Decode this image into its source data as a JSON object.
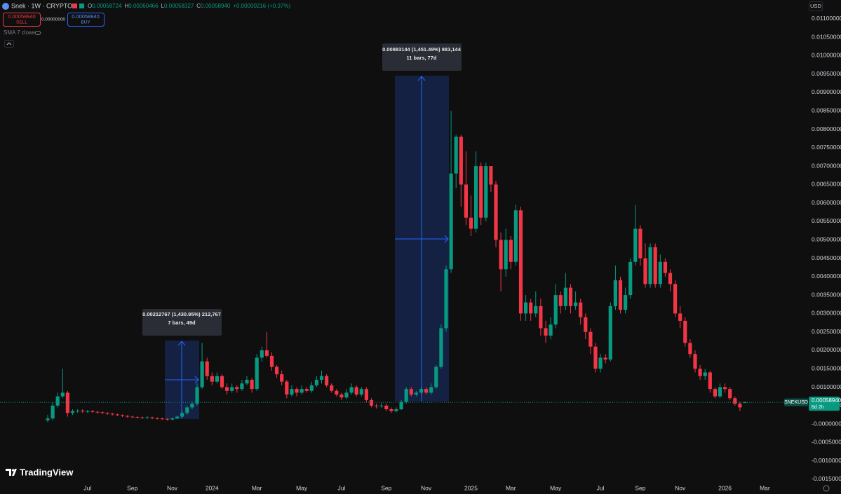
{
  "header": {
    "symbol": "Snek · 1W · CRYPTO",
    "legend": [
      {
        "key": "O",
        "value": "0.00058724"
      },
      {
        "key": "H",
        "value": "0.00060466"
      },
      {
        "key": "L",
        "value": "0.00058327"
      },
      {
        "key": "C",
        "value": "0.00058940"
      }
    ],
    "change": "+0.00000216 (+0.37%)"
  },
  "trade": {
    "sell_price": "0.00058940",
    "sell": "SELL",
    "spread": "0.00000000",
    "buy_price": "0.00058940",
    "buy": "BUY"
  },
  "indicator": "SMA 7 close",
  "currency": "USD",
  "brand": "TradingView",
  "measures": [
    {
      "text": "0.00212767 (1,430.95%) 212,767",
      "sub": "7 bars, 49d"
    },
    {
      "text": "0.00883144 (1,451.49%) 883,144",
      "sub": "11 bars, 77d"
    }
  ],
  "price_badge": {
    "symbol": "SNEKUSD",
    "price": "0.00058940",
    "countdown": "6d 2h"
  },
  "chart_data": {
    "type": "candlestick",
    "up_color": "#089981",
    "down_color": "#f23645",
    "grid": false,
    "ylim": [
      -0.00152,
      0.01151
    ],
    "yticks": [
      {
        "value": -0.0015,
        "label": "-0.00150000"
      },
      {
        "value": -0.001,
        "label": "-0.00100000"
      },
      {
        "value": -0.0005,
        "label": "-0.00050000"
      },
      {
        "value": 0,
        "label": "-0.00000000"
      },
      {
        "value": 0.0005,
        "label": "0.00050000"
      },
      {
        "value": 0.001,
        "label": "0.00100000"
      },
      {
        "value": 0.0015,
        "label": "0.00150000"
      },
      {
        "value": 0.002,
        "label": "0.00200000"
      },
      {
        "value": 0.0025,
        "label": "0.00250000"
      },
      {
        "value": 0.003,
        "label": "0.00300000"
      },
      {
        "value": 0.0035,
        "label": "0.00350000"
      },
      {
        "value": 0.004,
        "label": "0.00400000"
      },
      {
        "value": 0.0045,
        "label": "0.00450000"
      },
      {
        "value": 0.005,
        "label": "0.00500000"
      },
      {
        "value": 0.0055,
        "label": "0.00550000"
      },
      {
        "value": 0.006,
        "label": "0.00600000"
      },
      {
        "value": 0.0065,
        "label": "0.00650000"
      },
      {
        "value": 0.007,
        "label": "0.00700000"
      },
      {
        "value": 0.0075,
        "label": "0.00750000"
      },
      {
        "value": 0.008,
        "label": "0.00800000"
      },
      {
        "value": 0.0085,
        "label": "0.00850000"
      },
      {
        "value": 0.009,
        "label": "0.00900000"
      },
      {
        "value": 0.0095,
        "label": "0.00950000"
      },
      {
        "value": 0.01,
        "label": "0.01000000"
      },
      {
        "value": 0.0105,
        "label": "0.01050000"
      },
      {
        "value": 0.011,
        "label": "0.01100000"
      }
    ],
    "categories": [
      null,
      null,
      null,
      null,
      null,
      null,
      null,
      null,
      "Jul",
      null,
      null,
      null,
      null,
      null,
      null,
      null,
      null,
      "Sep",
      null,
      null,
      null,
      null,
      null,
      null,
      null,
      "Nov",
      null,
      null,
      null,
      null,
      null,
      null,
      null,
      "2024",
      null,
      null,
      null,
      null,
      null,
      null,
      null,
      null,
      "Mar",
      null,
      null,
      null,
      null,
      null,
      null,
      null,
      null,
      "May",
      null,
      null,
      null,
      null,
      null,
      null,
      null,
      "Jul",
      null,
      null,
      null,
      null,
      null,
      null,
      null,
      null,
      "Sep",
      null,
      null,
      null,
      null,
      null,
      null,
      null,
      "Nov",
      null,
      null,
      null,
      null,
      null,
      null,
      null,
      null,
      "2025",
      null,
      null,
      null,
      null,
      null,
      null,
      null,
      "Mar",
      null,
      null,
      null,
      null,
      null,
      null,
      null,
      null,
      "May",
      null,
      null,
      null,
      null,
      null,
      null,
      null,
      null,
      "Jul",
      null,
      null,
      null,
      null,
      null,
      null,
      null,
      "Sep",
      null,
      null,
      null,
      null,
      null,
      null,
      null,
      "Nov",
      null,
      null,
      null,
      null,
      null,
      null,
      null,
      null,
      "2026",
      null,
      null,
      null,
      null,
      null,
      null,
      null,
      "Mar",
      null
    ],
    "ohlc": [
      [
        0.0001,
        0.00025,
        5e-05,
        0.00015
      ],
      [
        0.00015,
        0.0006,
        0.0001,
        0.0005
      ],
      [
        0.0005,
        0.00085,
        0.00045,
        0.00075
      ],
      [
        0.00075,
        0.0015,
        0.0007,
        0.00085
      ],
      [
        0.00085,
        0.0009,
        0.0002,
        0.0003
      ],
      [
        0.0003,
        0.0004,
        0.00025,
        0.00035
      ],
      [
        0.00035,
        0.0004,
        0.0003,
        0.00036
      ],
      [
        0.00036,
        0.0004,
        0.0003,
        0.00034
      ],
      [
        0.00034,
        0.00038,
        0.0003,
        0.00035
      ],
      [
        0.00035,
        0.00038,
        0.0003,
        0.00033
      ],
      [
        0.00033,
        0.00036,
        0.00029,
        0.00032
      ],
      [
        0.00032,
        0.00034,
        0.00027,
        0.0003
      ],
      [
        0.0003,
        0.00032,
        0.00025,
        0.00028
      ],
      [
        0.00028,
        0.0003,
        0.00023,
        0.00026
      ],
      [
        0.00026,
        0.00028,
        0.00021,
        0.00024
      ],
      [
        0.00024,
        0.00026,
        0.00019,
        0.00022
      ],
      [
        0.00022,
        0.00024,
        0.00017,
        0.0002
      ],
      [
        0.0002,
        0.00022,
        0.00016,
        0.00019
      ],
      [
        0.00019,
        0.00021,
        0.00015,
        0.00018
      ],
      [
        0.00018,
        0.0002,
        0.00014,
        0.00017
      ],
      [
        0.00017,
        0.00021,
        0.00014,
        0.00018
      ],
      [
        0.00018,
        0.0002,
        0.00013,
        0.00016
      ],
      [
        0.00016,
        0.00018,
        0.00012,
        0.00015
      ],
      [
        0.00015,
        0.00017,
        0.00011,
        0.00014
      ],
      [
        0.00014,
        0.00016,
        9e-05,
        0.00012
      ],
      [
        0.00012,
        0.00018,
        0.0001,
        0.00015
      ],
      [
        0.00015,
        0.00023,
        0.00013,
        0.0002
      ],
      [
        0.0002,
        0.00035,
        0.00018,
        0.0003
      ],
      [
        0.0003,
        0.0005,
        0.00025,
        0.00045
      ],
      [
        0.00045,
        0.00062,
        0.0004,
        0.00055
      ],
      [
        0.00055,
        0.0011,
        0.0005,
        0.001
      ],
      [
        0.001,
        0.0022,
        0.00095,
        0.0017
      ],
      [
        0.0017,
        0.0018,
        0.0012,
        0.0013
      ],
      [
        0.0013,
        0.0014,
        0.00105,
        0.00115
      ],
      [
        0.00115,
        0.0014,
        0.0011,
        0.0013
      ],
      [
        0.0013,
        0.00135,
        0.00095,
        0.001
      ],
      [
        0.001,
        0.0011,
        0.0008,
        0.0009
      ],
      [
        0.0009,
        0.0011,
        0.00085,
        0.001
      ],
      [
        0.001,
        0.00105,
        0.00085,
        0.00095
      ],
      [
        0.00095,
        0.0012,
        0.0009,
        0.0011
      ],
      [
        0.0011,
        0.0013,
        0.00105,
        0.0012
      ],
      [
        0.0012,
        0.00125,
        0.00085,
        0.00095
      ],
      [
        0.00095,
        0.0019,
        0.0009,
        0.0018
      ],
      [
        0.0018,
        0.0021,
        0.0017,
        0.002
      ],
      [
        0.002,
        0.0025,
        0.0018,
        0.00185
      ],
      [
        0.00185,
        0.00195,
        0.00145,
        0.00155
      ],
      [
        0.00155,
        0.0016,
        0.00125,
        0.00135
      ],
      [
        0.00135,
        0.00145,
        0.00105,
        0.00115
      ],
      [
        0.00115,
        0.0012,
        0.0007,
        0.0008
      ],
      [
        0.0008,
        0.00105,
        0.00075,
        0.00095
      ],
      [
        0.00095,
        0.001,
        0.00075,
        0.00085
      ],
      [
        0.00085,
        0.00105,
        0.0008,
        0.00095
      ],
      [
        0.00095,
        0.001,
        0.00085,
        0.0009
      ],
      [
        0.0009,
        0.00115,
        0.00085,
        0.00105
      ],
      [
        0.00105,
        0.0013,
        0.001,
        0.0012
      ],
      [
        0.0012,
        0.00145,
        0.0011,
        0.0013
      ],
      [
        0.0013,
        0.00135,
        0.001,
        0.00105
      ],
      [
        0.00105,
        0.0011,
        0.00085,
        0.0009
      ],
      [
        0.0009,
        0.00095,
        0.00075,
        0.0008
      ],
      [
        0.0008,
        0.00085,
        0.00065,
        0.00072
      ],
      [
        0.00072,
        0.00095,
        0.00068,
        0.00085
      ],
      [
        0.00085,
        0.0011,
        0.0008,
        0.001
      ],
      [
        0.001,
        0.00105,
        0.00075,
        0.0008
      ],
      [
        0.0008,
        0.001,
        0.00075,
        0.00095
      ],
      [
        0.00095,
        0.001,
        0.0006,
        0.00065
      ],
      [
        0.00065,
        0.0007,
        0.00045,
        0.0005
      ],
      [
        0.0005,
        0.00055,
        0.00042,
        0.00048
      ],
      [
        0.00048,
        0.00058,
        0.00044,
        0.0005
      ],
      [
        0.0005,
        0.00055,
        0.00035,
        0.0004
      ],
      [
        0.0004,
        0.00045,
        0.0003,
        0.00035
      ],
      [
        0.00035,
        0.00045,
        0.00032,
        0.0004
      ],
      [
        0.0004,
        0.00065,
        0.00038,
        0.0006
      ],
      [
        0.0006,
        0.001,
        0.00055,
        0.00095
      ],
      [
        0.00095,
        0.001,
        0.00075,
        0.0008
      ],
      [
        0.0008,
        0.0009,
        0.00075,
        0.00085
      ],
      [
        0.00085,
        0.001,
        0.0008,
        0.00095
      ],
      [
        0.00095,
        0.001,
        0.0008,
        0.00085
      ],
      [
        0.00085,
        0.0011,
        0.0008,
        0.001
      ],
      [
        0.001,
        0.0016,
        0.00095,
        0.00155
      ],
      [
        0.00155,
        0.0027,
        0.0015,
        0.0026
      ],
      [
        0.0026,
        0.0043,
        0.0025,
        0.0042
      ],
      [
        0.0042,
        0.0085,
        0.0041,
        0.0068
      ],
      [
        0.0068,
        0.00785,
        0.0064,
        0.0078
      ],
      [
        0.0078,
        0.00785,
        0.0059,
        0.0065
      ],
      [
        0.0065,
        0.0074,
        0.0054,
        0.0056
      ],
      [
        0.0056,
        0.0062,
        0.0051,
        0.0053
      ],
      [
        0.0053,
        0.0074,
        0.0052,
        0.007
      ],
      [
        0.007,
        0.0071,
        0.0054,
        0.0056
      ],
      [
        0.0056,
        0.0071,
        0.0055,
        0.007
      ],
      [
        0.007,
        0.007,
        0.0063,
        0.0065
      ],
      [
        0.0065,
        0.0066,
        0.0048,
        0.005
      ],
      [
        0.005,
        0.0052,
        0.0036,
        0.0042
      ],
      [
        0.0042,
        0.0053,
        0.004,
        0.005
      ],
      [
        0.005,
        0.0051,
        0.0042,
        0.0044
      ],
      [
        0.0044,
        0.00595,
        0.0043,
        0.0058
      ],
      [
        0.0058,
        0.0059,
        0.0028,
        0.003
      ],
      [
        0.003,
        0.0035,
        0.0028,
        0.0033
      ],
      [
        0.0033,
        0.0034,
        0.0028,
        0.003
      ],
      [
        0.003,
        0.0036,
        0.0029,
        0.0032
      ],
      [
        0.0032,
        0.0034,
        0.0024,
        0.0026
      ],
      [
        0.0026,
        0.0028,
        0.0022,
        0.0024
      ],
      [
        0.0024,
        0.0029,
        0.0023,
        0.0027
      ],
      [
        0.0027,
        0.0038,
        0.0026,
        0.0035
      ],
      [
        0.0035,
        0.0036,
        0.003,
        0.0032
      ],
      [
        0.0032,
        0.0041,
        0.0031,
        0.0037
      ],
      [
        0.0037,
        0.0038,
        0.003,
        0.0032
      ],
      [
        0.0032,
        0.0036,
        0.0031,
        0.0033
      ],
      [
        0.0033,
        0.0034,
        0.0027,
        0.0029
      ],
      [
        0.0029,
        0.003,
        0.0023,
        0.0025
      ],
      [
        0.0025,
        0.0026,
        0.0019,
        0.0021
      ],
      [
        0.0021,
        0.0022,
        0.0014,
        0.0015
      ],
      [
        0.0015,
        0.0019,
        0.0014,
        0.0018
      ],
      [
        0.0018,
        0.0019,
        0.00165,
        0.00175
      ],
      [
        0.00175,
        0.0033,
        0.0017,
        0.0032
      ],
      [
        0.0032,
        0.0043,
        0.0031,
        0.0039
      ],
      [
        0.0039,
        0.004,
        0.003,
        0.0031
      ],
      [
        0.0031,
        0.0037,
        0.003,
        0.0035
      ],
      [
        0.0035,
        0.0045,
        0.0034,
        0.0044
      ],
      [
        0.0044,
        0.00595,
        0.0043,
        0.0053
      ],
      [
        0.0053,
        0.0054,
        0.0043,
        0.0045
      ],
      [
        0.0045,
        0.0049,
        0.0037,
        0.0038
      ],
      [
        0.0038,
        0.0049,
        0.0037,
        0.0048
      ],
      [
        0.0048,
        0.0049,
        0.0037,
        0.0038
      ],
      [
        0.0038,
        0.0046,
        0.0037,
        0.0044
      ],
      [
        0.0044,
        0.0045,
        0.004,
        0.0041
      ],
      [
        0.0041,
        0.0042,
        0.0036,
        0.0038
      ],
      [
        0.0038,
        0.0039,
        0.0029,
        0.003
      ],
      [
        0.003,
        0.0032,
        0.0026,
        0.0028
      ],
      [
        0.0028,
        0.0029,
        0.0021,
        0.0022
      ],
      [
        0.0022,
        0.0023,
        0.0018,
        0.0019
      ],
      [
        0.0019,
        0.002,
        0.0014,
        0.0015
      ],
      [
        0.0015,
        0.0016,
        0.0012,
        0.0013
      ],
      [
        0.0013,
        0.0015,
        0.0012,
        0.0014
      ],
      [
        0.0014,
        0.00145,
        0.00085,
        0.00095
      ],
      [
        0.00095,
        0.001,
        0.0007,
        0.00075
      ],
      [
        0.00075,
        0.0011,
        0.0007,
        0.001
      ],
      [
        0.001,
        0.0011,
        0.00085,
        0.00095
      ],
      [
        0.00095,
        0.001,
        0.00065,
        0.0007
      ],
      [
        0.0007,
        0.00075,
        0.0005,
        0.00055
      ],
      [
        0.00055,
        0.0006,
        0.00035,
        0.00045
      ],
      [
        0.00058724,
        0.00060466,
        0.00058327,
        0.0005894
      ],
      null,
      null,
      null,
      null,
      null
    ]
  }
}
